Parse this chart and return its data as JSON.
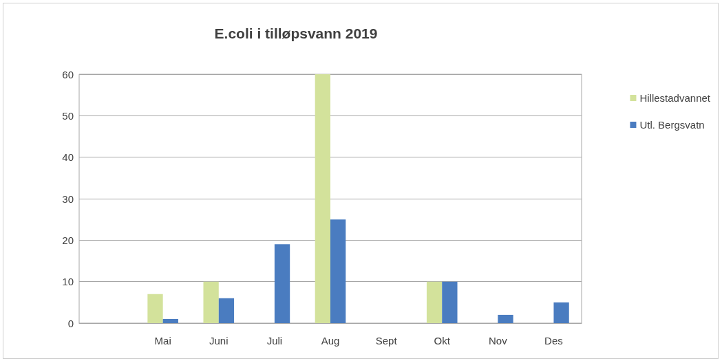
{
  "chart_data": {
    "type": "bar",
    "title": "E.coli i tilløpsvann 2019",
    "categories": [
      null,
      "Mai",
      "Juni",
      "Juli",
      "Aug",
      "Sept",
      "Okt",
      "Nov",
      "Des"
    ],
    "series": [
      {
        "name": "Hillestadvannet",
        "color": "#d3e29b",
        "values": [
          null,
          7,
          10,
          null,
          60,
          null,
          10,
          null,
          null
        ]
      },
      {
        "name": "Utl. Bergsvatn",
        "color": "#4a7cc0",
        "values": [
          null,
          1,
          6,
          19,
          25,
          null,
          10,
          2,
          5
        ]
      }
    ],
    "ylim": [
      0,
      60
    ],
    "yticks": [
      0,
      10,
      20,
      30,
      40,
      50,
      60
    ],
    "grid": "y",
    "legend": "right"
  }
}
